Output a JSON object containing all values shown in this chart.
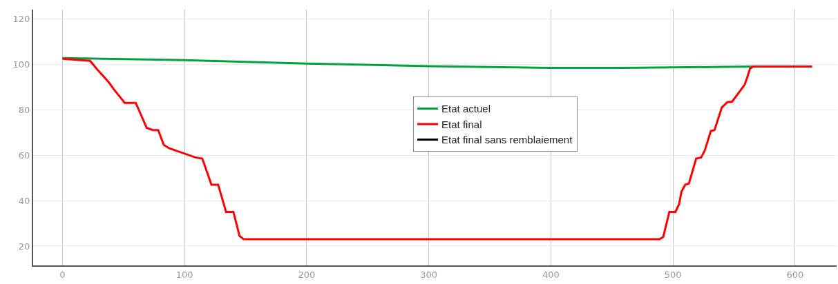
{
  "chart_data": {
    "type": "line",
    "xlim": [
      -24,
      634
    ],
    "ylim": [
      11.5,
      124
    ],
    "xticks": [
      0,
      100,
      200,
      300,
      400,
      500,
      600
    ],
    "yticks": [
      20,
      40,
      60,
      80,
      100,
      120
    ],
    "grid": true,
    "legend": "center",
    "marker": "none",
    "line_style": "solid",
    "series": [
      {
        "name": "Etat actuel",
        "color": "#00a33c",
        "x": [
          0,
          100,
          200,
          231,
          300,
          400,
          457,
          500,
          542,
          565.5
        ],
        "values": [
          102.7,
          101.8,
          100.3,
          100,
          99.1,
          98.4,
          98.4,
          98.6,
          98.8,
          99
        ]
      },
      {
        "name": "Etat final",
        "color": "#ff0000",
        "x": [
          0,
          22.6,
          28,
          38,
          42,
          51,
          60,
          69,
          74,
          78.4,
          83,
          87.5,
          109,
          114.5,
          122,
          127.5,
          134,
          140,
          145,
          148.4,
          489,
          492,
          497,
          502,
          505,
          507,
          510,
          513,
          519,
          523,
          526,
          531,
          534,
          540,
          544.5,
          548.5,
          558.7,
          561,
          563,
          565.5,
          614
        ],
        "values": [
          102.4,
          101.5,
          98,
          92,
          89,
          83,
          83,
          72,
          71,
          71,
          64.5,
          63,
          59,
          58.5,
          47,
          47,
          35,
          35,
          24.5,
          23,
          23,
          24,
          35,
          35,
          38.5,
          44,
          47,
          47.5,
          58.5,
          59,
          62,
          70.6,
          71,
          81,
          83.3,
          83.6,
          91,
          94.5,
          98,
          99,
          99
        ]
      },
      {
        "name": "Etat final sans remblaiement",
        "color": "#000000"
      }
    ]
  }
}
